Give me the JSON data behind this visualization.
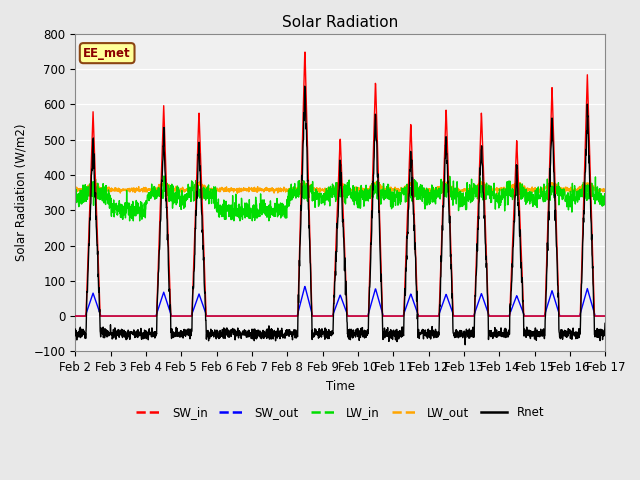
{
  "title": "Solar Radiation",
  "ylabel": "Solar Radiation (W/m2)",
  "xlabel": "Time",
  "ylim": [
    -100,
    800
  ],
  "x_tick_labels": [
    "Feb 2",
    "Feb 3",
    "Feb 4",
    "Feb 5",
    "Feb 6",
    "Feb 7",
    "Feb 8",
    "Feb 9",
    "Feb 10",
    "Feb 11",
    "Feb 12",
    "Feb 13",
    "Feb 14",
    "Feb 15",
    "Feb 16",
    "Feb 17"
  ],
  "annotation_text": "EE_met",
  "annotation_box_facecolor": "#FFFF99",
  "annotation_box_edgecolor": "#8B4513",
  "bg_color": "#E8E8E8",
  "plot_bg_color": "#F0F0F0",
  "series": {
    "SW_in": {
      "color": "#FF0000",
      "lw": 1.0
    },
    "SW_out": {
      "color": "#0000FF",
      "lw": 1.0
    },
    "LW_in": {
      "color": "#00DD00",
      "lw": 1.0
    },
    "LW_out": {
      "color": "#FFA500",
      "lw": 1.0
    },
    "Rnet": {
      "color": "#000000",
      "lw": 1.0
    }
  },
  "legend_entries": [
    "SW_in",
    "SW_out",
    "LW_in",
    "LW_out",
    "Rnet"
  ],
  "legend_colors": [
    "#FF0000",
    "#0000FF",
    "#00DD00",
    "#FFA500",
    "#000000"
  ],
  "legend_styles": [
    "--",
    "--",
    "--",
    "--",
    "-"
  ],
  "n_days": 15,
  "pts_per_day": 144,
  "sw_in_peaks": [
    580,
    0,
    600,
    580,
    0,
    0,
    760,
    510,
    670,
    550,
    590,
    580,
    500,
    650,
    685
  ],
  "sw_out_peaks": [
    65,
    0,
    68,
    63,
    0,
    0,
    85,
    60,
    78,
    63,
    62,
    64,
    58,
    72,
    78
  ],
  "night_rnet": -50,
  "lw_in_base": 330,
  "lw_out_base": 358
}
